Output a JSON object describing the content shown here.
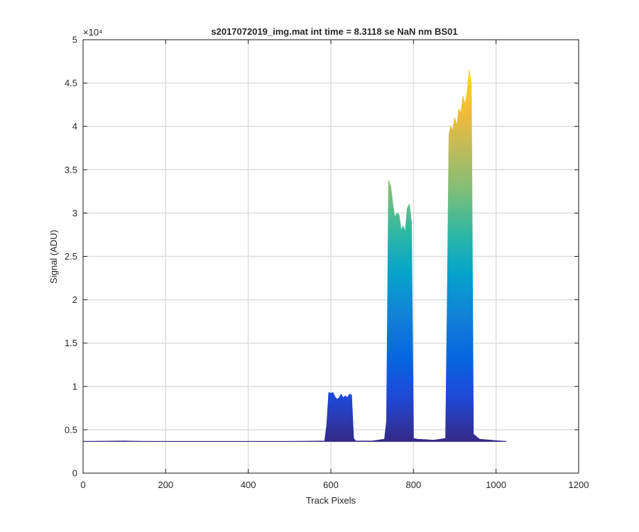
{
  "chart_data": {
    "type": "area",
    "title": "s2017072019_img.mat int time = 8.3118 se  NaN nm BS01",
    "xlabel": "Track Pixels",
    "ylabel": "Signal (ADU)",
    "xlim": [
      0,
      1200
    ],
    "ylim": [
      0,
      50000
    ],
    "x_ticks": [
      0,
      200,
      400,
      600,
      800,
      1000,
      1200
    ],
    "x_tick_labels": [
      "0",
      "200",
      "400",
      "600",
      "800",
      "1000",
      "1200"
    ],
    "y_ticks": [
      0,
      5000,
      10000,
      15000,
      20000,
      25000,
      30000,
      35000,
      40000,
      45000,
      50000
    ],
    "y_tick_labels": [
      "0",
      "0.5",
      "1",
      "1.5",
      "2",
      "2.5",
      "3",
      "3.5",
      "4",
      "4.5",
      "5"
    ],
    "y_exponent_label": "×10⁴",
    "grid": true,
    "colormap": "parula",
    "baseline": 3650,
    "series": [
      {
        "x": [
          0,
          100,
          150,
          200,
          300,
          400,
          500,
          585,
          590,
          595,
          600,
          605,
          610,
          615,
          620,
          625,
          630,
          635,
          640,
          645,
          650,
          655,
          660,
          700,
          730,
          735,
          740,
          745,
          750,
          755,
          760,
          765,
          770,
          775,
          780,
          785,
          790,
          795,
          800,
          810,
          850,
          878,
          882,
          886,
          890,
          895,
          900,
          905,
          910,
          915,
          920,
          925,
          930,
          935,
          940,
          945,
          960,
          1000,
          1025
        ],
        "y": [
          3650,
          3700,
          3650,
          3650,
          3650,
          3650,
          3650,
          3700,
          5500,
          9300,
          9200,
          9300,
          8800,
          8500,
          8700,
          9100,
          8700,
          8900,
          8700,
          9100,
          9000,
          4000,
          3700,
          3700,
          3900,
          6000,
          33800,
          33000,
          31000,
          29500,
          30000,
          29800,
          28000,
          28500,
          27800,
          30500,
          31000,
          29000,
          4000,
          3900,
          3800,
          4000,
          20000,
          39000,
          40000,
          39500,
          41000,
          40000,
          42000,
          41500,
          43500,
          42500,
          44000,
          46500,
          45000,
          4500,
          3900,
          3750,
          3650
        ]
      }
    ]
  }
}
